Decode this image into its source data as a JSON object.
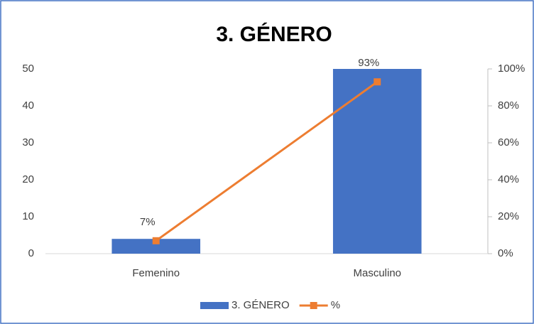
{
  "chart_data": {
    "type": "combo",
    "title": "3. GÉNERO",
    "categories": [
      "Femenino",
      "Masculino"
    ],
    "series": [
      {
        "name": "3. GÉNERO",
        "type": "bar",
        "color": "#4472c4",
        "values": [
          4,
          50
        ]
      },
      {
        "name": "%",
        "type": "line",
        "axis": "y2",
        "color": "#ed7d31",
        "values": [
          7,
          93
        ],
        "value_labels": [
          "7%",
          "93%"
        ]
      }
    ],
    "ylim": [
      0,
      50
    ],
    "yticks": [
      0,
      10,
      20,
      30,
      40,
      50
    ],
    "y2lim": [
      0,
      100
    ],
    "y2ticks": [
      {
        "value": 0,
        "label": "0%"
      },
      {
        "value": 20,
        "label": "20%"
      },
      {
        "value": 40,
        "label": "40%"
      },
      {
        "value": 60,
        "label": "60%"
      },
      {
        "value": 80,
        "label": "80%"
      },
      {
        "value": 100,
        "label": "100%"
      }
    ],
    "legend": "bottom"
  }
}
